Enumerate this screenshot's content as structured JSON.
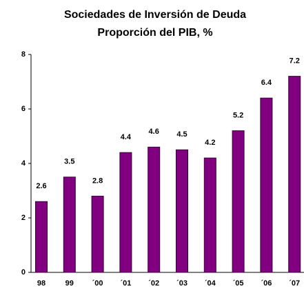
{
  "chart_data": {
    "type": "bar",
    "title": "Sociedades de Inversión de Deuda",
    "subtitle": "Proporción del PIB, %",
    "categories": [
      "98",
      "99",
      "´00",
      "´01",
      "´02",
      "´03",
      "´04",
      "´05",
      "´06",
      "´07"
    ],
    "values": [
      2.6,
      3.5,
      2.8,
      4.4,
      4.6,
      4.5,
      4.2,
      5.2,
      6.4,
      7.2
    ],
    "color": "#800080",
    "ylim": [
      0,
      8
    ],
    "yticks": [
      0,
      2,
      4,
      6,
      8
    ],
    "grid": false
  }
}
